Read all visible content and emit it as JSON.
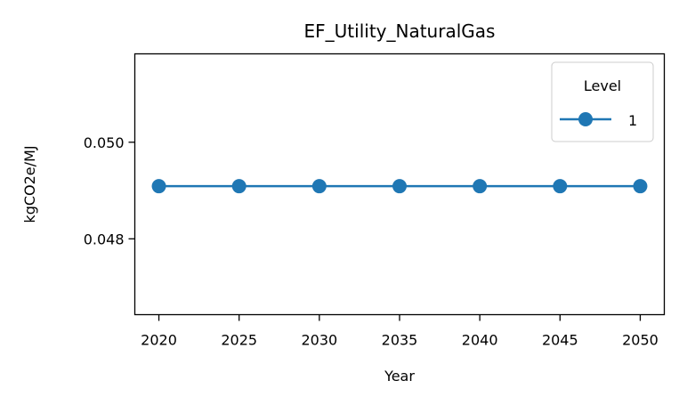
{
  "chart_data": {
    "type": "line",
    "title": "EF_Utility_NaturalGas",
    "xlabel": "Year",
    "ylabel": "kgCO2e/MJ",
    "x": [
      2020,
      2025,
      2030,
      2035,
      2040,
      2045,
      2050
    ],
    "x_ticks": [
      "2020",
      "2025",
      "2030",
      "2035",
      "2040",
      "2045",
      "2050"
    ],
    "y_ticks": [
      "0.048",
      "0.050"
    ],
    "y_tick_values": [
      0.048,
      0.05
    ],
    "xlim": [
      2018.5,
      2051.5
    ],
    "ylim": [
      0.04643,
      0.05183
    ],
    "grid": false,
    "legend": {
      "title": "Level",
      "placement": "top-right"
    },
    "series": [
      {
        "name": "1",
        "color": "#1f77b4",
        "marker": "circle",
        "y": [
          0.04909,
          0.04909,
          0.04909,
          0.04909,
          0.04909,
          0.04909,
          0.04909
        ]
      }
    ]
  }
}
